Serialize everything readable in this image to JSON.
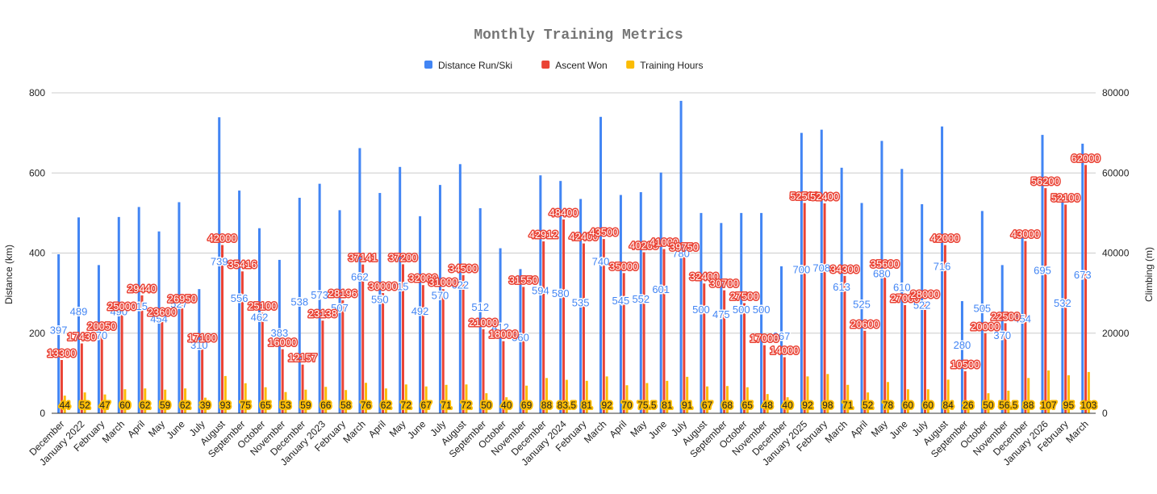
{
  "chart_data": {
    "type": "bar",
    "title": "Monthly Training Metrics",
    "ylabel_left": "Distance (km)",
    "ylabel_right": "Climbing (m)",
    "ylim_left": [
      0,
      800
    ],
    "ylim_right": [
      0,
      80000
    ],
    "yticks_left": [
      0,
      200,
      400,
      600,
      800
    ],
    "yticks_right": [
      0,
      20000,
      40000,
      60000,
      80000
    ],
    "grid": true,
    "legend_position": "top",
    "categories": [
      "December",
      "January 2022",
      "February",
      "March",
      "April",
      "May",
      "June",
      "July",
      "August",
      "September",
      "October",
      "November",
      "December",
      "January 2023",
      "February",
      "March",
      "April",
      "May",
      "June",
      "July",
      "August",
      "September",
      "October",
      "November",
      "December",
      "January 2024",
      "February",
      "March",
      "April",
      "May",
      "June",
      "July",
      "August",
      "September",
      "October",
      "November",
      "December",
      "January 2025",
      "February",
      "March",
      "April",
      "May",
      "June",
      "July",
      "August",
      "September",
      "October",
      "November",
      "December",
      "January 2026",
      "February",
      "March"
    ],
    "series": [
      {
        "name": "Distance Run/Ski",
        "color": "#4285f4",
        "axis": "left",
        "values": [
          397,
          489,
          370,
          490,
          515,
          454,
          527,
          310,
          739,
          556,
          462,
          383,
          538,
          573,
          507,
          662,
          550,
          615,
          492,
          570,
          622,
          512,
          412,
          360,
          594,
          580,
          535,
          740,
          545,
          552,
          601,
          780,
          500,
          475,
          500,
          500,
          367,
          700,
          708,
          613,
          525,
          680,
          610,
          522,
          716,
          280,
          505,
          370,
          454,
          695,
          532,
          673
        ]
      },
      {
        "name": "Ascent Won",
        "color": "#ea4335",
        "axis": "right",
        "values": [
          13300,
          17430,
          20050,
          25000,
          29440,
          23600,
          26950,
          17100,
          42000,
          35416,
          25100,
          16000,
          12157,
          23138,
          28196,
          37141,
          30000,
          37200,
          32000,
          31000,
          34500,
          21000,
          18000,
          31550,
          42912,
          48400,
          42400,
          43500,
          35000,
          40205,
          41000,
          39750,
          32400,
          30700,
          27500,
          17000,
          14000,
          52500,
          52400,
          34300,
          20600,
          35600,
          27000,
          28000,
          42000,
          10500,
          20000,
          22500,
          43000,
          56200,
          52100,
          62000
        ]
      },
      {
        "name": "Training Hours",
        "color": "#fbbc04",
        "axis": "left",
        "values": [
          44,
          52,
          47,
          60,
          62,
          59,
          62,
          39,
          93,
          75,
          65,
          53,
          59,
          66,
          58,
          76,
          62,
          72,
          67,
          71,
          72,
          50,
          40,
          69,
          88,
          83.5,
          81,
          92,
          70,
          75.5,
          81,
          91,
          67,
          68,
          65,
          48,
          40,
          92,
          98,
          71,
          52,
          78,
          60,
          60,
          84,
          26,
          50,
          56.5,
          88,
          107,
          95,
          103
        ]
      }
    ]
  }
}
